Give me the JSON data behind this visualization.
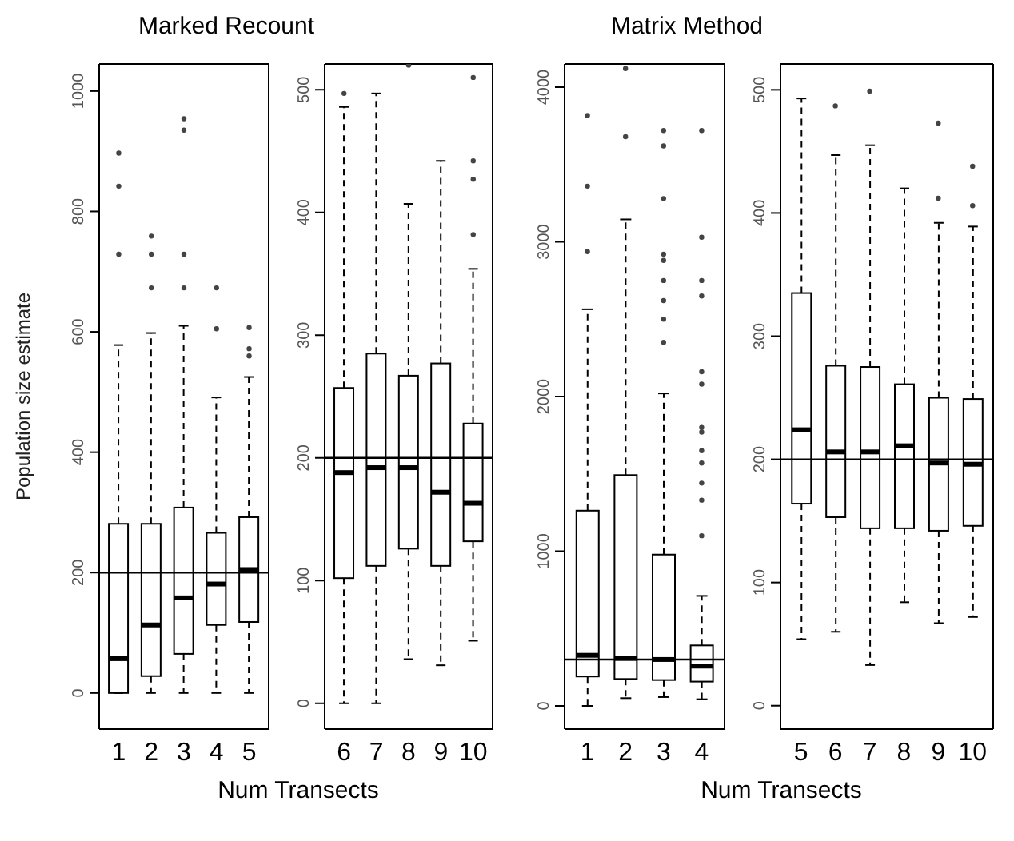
{
  "chart_data": [
    {
      "type": "box",
      "title": "Marked Recount",
      "xlabel": "Num Transects",
      "ylabel": "Population size estimate",
      "categories": [
        "1",
        "2",
        "3",
        "4",
        "5"
      ],
      "ylim": [
        -60,
        1045
      ],
      "yticks": [
        0,
        200,
        400,
        600,
        800,
        1000
      ],
      "ref_lines": [
        {
          "axis": "y",
          "value": 200
        }
      ],
      "boxes": [
        {
          "low": 0,
          "q1": 0,
          "median": 57,
          "q3": 281,
          "high": 578,
          "outliers": [
            729,
            842,
            897
          ]
        },
        {
          "low": 0,
          "q1": 28,
          "median": 113,
          "q3": 281,
          "high": 598,
          "outliers": [
            673,
            729,
            759
          ]
        },
        {
          "low": 0,
          "q1": 65,
          "median": 158,
          "q3": 308,
          "high": 610,
          "outliers": [
            673,
            729,
            935,
            954
          ]
        },
        {
          "low": 0,
          "q1": 113,
          "median": 181,
          "q3": 266,
          "high": 491,
          "outliers": [
            605,
            673
          ]
        },
        {
          "low": 0,
          "q1": 118,
          "median": 205,
          "q3": 292,
          "high": 525,
          "outliers": [
            560,
            572,
            607
          ]
        }
      ]
    },
    {
      "type": "box",
      "categories": [
        "6",
        "7",
        "8",
        "9",
        "10"
      ],
      "ylim": [
        -21,
        521
      ],
      "yticks": [
        0,
        100,
        200,
        300,
        400,
        500
      ],
      "ref_lines": [
        {
          "axis": "y",
          "value": 200
        }
      ],
      "boxes": [
        {
          "low": 0,
          "q1": 102,
          "median": 188,
          "q3": 257,
          "high": 486,
          "outliers": [
            497
          ]
        },
        {
          "low": 0,
          "q1": 112,
          "median": 192,
          "q3": 285,
          "high": 497
        },
        {
          "low": 36,
          "q1": 126,
          "median": 192,
          "q3": 267,
          "high": 407,
          "outliers": [
            520
          ]
        },
        {
          "low": 31,
          "q1": 112,
          "median": 172,
          "q3": 277,
          "high": 442
        },
        {
          "low": 51,
          "q1": 132,
          "median": 163,
          "q3": 228,
          "high": 354,
          "outliers": [
            382,
            427,
            442,
            510
          ]
        }
      ]
    },
    {
      "type": "box",
      "title": "Matrix Method",
      "xlabel": "Num Transects",
      "categories": [
        "1",
        "2",
        "3",
        "4"
      ],
      "ylim": [
        -150,
        4150
      ],
      "yticks": [
        0,
        1000,
        2000,
        3000,
        4000
      ],
      "ref_lines": [
        {
          "axis": "y",
          "value": 300
        }
      ],
      "boxes": [
        {
          "low": 0,
          "q1": 190,
          "median": 327,
          "q3": 1262,
          "high": 2564,
          "outliers": [
            2937,
            3360,
            3817
          ]
        },
        {
          "low": 50,
          "q1": 174,
          "median": 307,
          "q3": 1492,
          "high": 3145,
          "outliers": [
            3680,
            4120
          ]
        },
        {
          "low": 57,
          "q1": 167,
          "median": 300,
          "q3": 978,
          "high": 2020,
          "outliers": [
            2350,
            2500,
            2620,
            2750,
            2880,
            2920,
            3280,
            3620,
            3720
          ]
        },
        {
          "low": 43,
          "q1": 157,
          "median": 257,
          "q3": 391,
          "high": 711,
          "outliers": [
            1100,
            1330,
            1440,
            1570,
            1650,
            1770,
            1800,
            2080,
            2160,
            2650,
            2750,
            3030,
            3720
          ]
        }
      ]
    },
    {
      "type": "box",
      "categories": [
        "5",
        "6",
        "7",
        "8",
        "9",
        "10"
      ],
      "ylim": [
        -19,
        521
      ],
      "yticks": [
        0,
        100,
        200,
        300,
        400,
        500
      ],
      "ref_lines": [
        {
          "axis": "y",
          "value": 200
        }
      ],
      "boxes": [
        {
          "low": 54,
          "q1": 164,
          "median": 224,
          "q3": 335,
          "high": 493
        },
        {
          "low": 60,
          "q1": 153,
          "median": 206,
          "q3": 276,
          "high": 447,
          "outliers": [
            487
          ]
        },
        {
          "low": 33,
          "q1": 144,
          "median": 206,
          "q3": 275,
          "high": 455,
          "outliers": [
            499
          ]
        },
        {
          "low": 84,
          "q1": 144,
          "median": 211,
          "q3": 261,
          "high": 420
        },
        {
          "low": 67,
          "q1": 142,
          "median": 197,
          "q3": 250,
          "high": 392,
          "outliers": [
            412,
            473
          ]
        },
        {
          "low": 72,
          "q1": 146,
          "median": 196,
          "q3": 249,
          "high": 389,
          "outliers": [
            406,
            438
          ]
        }
      ]
    }
  ]
}
